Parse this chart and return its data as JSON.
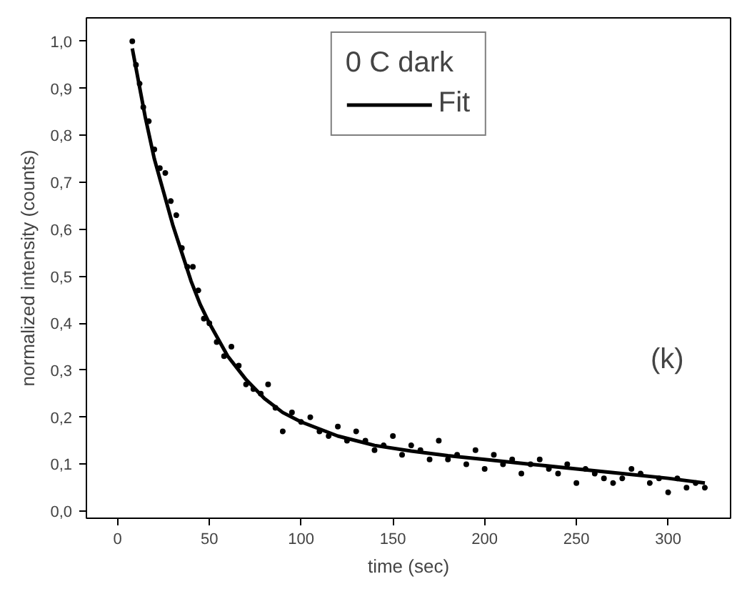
{
  "chart_data": {
    "type": "scatter",
    "xlabel": "time (sec)",
    "ylabel": "normalized intensity (counts)",
    "xlim": [
      -17,
      334
    ],
    "ylim": [
      -0.015,
      1.05
    ],
    "xticks": [
      0,
      50,
      100,
      150,
      200,
      250,
      300
    ],
    "yticks": [
      {
        "value": 0,
        "label": "0,0"
      },
      {
        "value": 0.1,
        "label": "0,1"
      },
      {
        "value": 0.2,
        "label": "0,2"
      },
      {
        "value": 0.3,
        "label": "0,3"
      },
      {
        "value": 0.4,
        "label": "0,4"
      },
      {
        "value": 0.5,
        "label": "0,5"
      },
      {
        "value": 0.6,
        "label": "0,6"
      },
      {
        "value": 0.7,
        "label": "0,7"
      },
      {
        "value": 0.8,
        "label": "0,8"
      },
      {
        "value": 0.9,
        "label": "0,9"
      },
      {
        "value": 1.0,
        "label": "1,0"
      }
    ],
    "grid": false,
    "legend": "top",
    "legend_title": "0 C dark",
    "annotations": [
      "(k)"
    ],
    "series": [
      {
        "marker": "circle",
        "color": "#000000",
        "x": [
          8,
          10,
          12,
          14,
          17,
          20,
          23,
          26,
          29,
          32,
          35,
          38,
          41,
          44,
          47,
          50,
          54,
          58,
          62,
          66,
          70,
          74,
          78,
          82,
          86,
          90,
          95,
          100,
          105,
          110,
          115,
          120,
          125,
          130,
          135,
          140,
          145,
          150,
          155,
          160,
          165,
          170,
          175,
          180,
          185,
          190,
          195,
          200,
          205,
          210,
          215,
          220,
          225,
          230,
          235,
          240,
          245,
          250,
          255,
          260,
          265,
          270,
          275,
          280,
          285,
          290,
          295,
          300,
          305,
          310,
          315,
          320
        ],
        "values": [
          1.0,
          0.95,
          0.91,
          0.86,
          0.83,
          0.77,
          0.73,
          0.72,
          0.66,
          0.63,
          0.56,
          0.52,
          0.52,
          0.47,
          0.41,
          0.4,
          0.36,
          0.33,
          0.35,
          0.31,
          0.27,
          0.26,
          0.25,
          0.27,
          0.22,
          0.17,
          0.21,
          0.19,
          0.2,
          0.17,
          0.16,
          0.18,
          0.15,
          0.17,
          0.15,
          0.13,
          0.14,
          0.16,
          0.12,
          0.14,
          0.13,
          0.11,
          0.15,
          0.11,
          0.12,
          0.1,
          0.13,
          0.09,
          0.12,
          0.1,
          0.11,
          0.08,
          0.1,
          0.11,
          0.09,
          0.08,
          0.1,
          0.06,
          0.09,
          0.08,
          0.07,
          0.06,
          0.07,
          0.09,
          0.08,
          0.06,
          0.07,
          0.04,
          0.07,
          0.05,
          0.06,
          0.05
        ]
      },
      {
        "name": "Fit",
        "type": "line",
        "line_style": "solid",
        "color": "#000000",
        "x": [
          8,
          15,
          20,
          25,
          30,
          35,
          40,
          45,
          50,
          60,
          70,
          80,
          90,
          100,
          120,
          140,
          160,
          180,
          200,
          225,
          250,
          275,
          300,
          320
        ],
        "values": [
          0.985,
          0.84,
          0.75,
          0.68,
          0.61,
          0.55,
          0.49,
          0.44,
          0.4,
          0.33,
          0.28,
          0.24,
          0.21,
          0.19,
          0.16,
          0.14,
          0.128,
          0.118,
          0.11,
          0.1,
          0.09,
          0.08,
          0.07,
          0.06
        ]
      }
    ]
  }
}
